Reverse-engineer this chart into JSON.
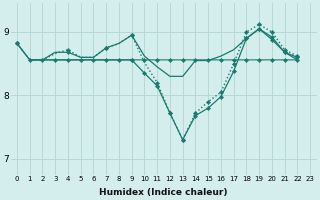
{
  "xlabel": "Humidex (Indice chaleur)",
  "bg_color": "#d4eeee",
  "grid_color": "#b8d8d8",
  "line_color": "#1a7a6e",
  "xlim": [
    -0.5,
    23.5
  ],
  "ylim": [
    6.75,
    9.45
  ],
  "yticks": [
    7,
    8,
    9
  ],
  "xticks": [
    0,
    1,
    2,
    3,
    4,
    5,
    6,
    7,
    8,
    9,
    10,
    11,
    12,
    13,
    14,
    15,
    16,
    17,
    18,
    19,
    20,
    21,
    22,
    23
  ],
  "series": [
    {
      "x": [
        0,
        1,
        2,
        3,
        4,
        5,
        6,
        7,
        8,
        9,
        10,
        11,
        12,
        13,
        14,
        15,
        16,
        17,
        18,
        19,
        20,
        21,
        22
      ],
      "y": [
        8.82,
        8.56,
        8.56,
        8.56,
        8.56,
        8.56,
        8.56,
        8.56,
        8.56,
        8.56,
        8.56,
        8.56,
        8.56,
        8.56,
        8.56,
        8.56,
        8.56,
        8.56,
        8.56,
        8.56,
        8.56,
        8.56,
        8.56
      ],
      "markers": [
        0,
        1,
        2,
        3,
        4,
        5,
        6,
        7,
        8,
        9,
        10,
        11,
        12,
        13,
        14,
        15,
        16,
        17,
        18,
        19,
        20,
        21,
        22
      ],
      "linestyle": "-",
      "linewidth": 0.8,
      "markevery": null
    },
    {
      "x": [
        0,
        1,
        2,
        3,
        4,
        5,
        6,
        7,
        8,
        9,
        10,
        11,
        12,
        13,
        14,
        15,
        16,
        17,
        18,
        19,
        20,
        21,
        22
      ],
      "y": [
        8.82,
        8.56,
        8.56,
        8.68,
        8.68,
        8.6,
        8.6,
        8.75,
        8.82,
        8.95,
        8.62,
        8.45,
        8.3,
        8.3,
        8.55,
        8.55,
        8.62,
        8.72,
        8.9,
        9.05,
        8.92,
        8.68,
        8.6
      ],
      "linestyle": "-",
      "linewidth": 0.9,
      "markers": [
        0,
        4,
        7,
        9,
        18,
        19,
        20,
        21,
        22
      ]
    },
    {
      "x": [
        0,
        1,
        2,
        3,
        4,
        5,
        6,
        7,
        8,
        9,
        10,
        11,
        12,
        13,
        14,
        15,
        16,
        17,
        18,
        19,
        20,
        21,
        22
      ],
      "y": [
        8.82,
        8.56,
        8.56,
        8.66,
        8.72,
        8.6,
        8.6,
        8.75,
        8.82,
        8.95,
        8.52,
        8.2,
        7.72,
        7.3,
        7.72,
        7.9,
        8.05,
        8.5,
        9.0,
        9.12,
        9.0,
        8.72,
        8.62
      ],
      "linestyle": ":",
      "linewidth": 1.0,
      "markers": [
        0,
        4,
        7,
        9,
        11,
        12,
        13,
        14,
        15,
        16,
        17,
        18,
        19,
        20,
        21,
        22
      ]
    },
    {
      "x": [
        1,
        2,
        3,
        4,
        5,
        6,
        7,
        8,
        9,
        10,
        11,
        12,
        13,
        14,
        15,
        16,
        17,
        18,
        19,
        20,
        21,
        22
      ],
      "y": [
        8.56,
        8.56,
        8.56,
        8.56,
        8.56,
        8.56,
        8.56,
        8.56,
        8.56,
        8.35,
        8.15,
        7.72,
        7.3,
        7.68,
        7.8,
        7.98,
        8.38,
        8.9,
        9.05,
        8.88,
        8.68,
        8.56
      ],
      "linestyle": "-",
      "linewidth": 0.9,
      "markers": [
        0,
        9,
        10,
        11,
        12,
        13,
        14,
        15,
        16,
        17,
        18,
        19,
        20,
        21
      ]
    }
  ]
}
